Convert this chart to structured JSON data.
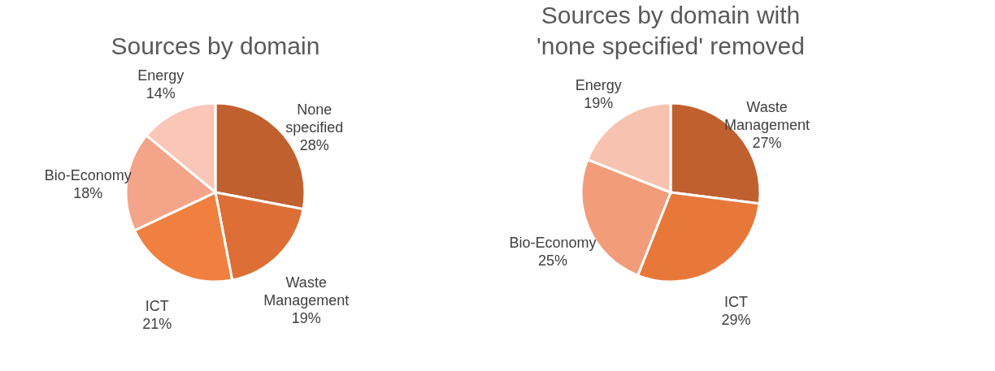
{
  "chart_data": [
    {
      "type": "pie",
      "title": "Sources by domain",
      "categories": [
        "None specified",
        "Waste Management",
        "ICT",
        "Bio-Economy",
        "Energy"
      ],
      "values": [
        28,
        19,
        21,
        18,
        14
      ],
      "colors": [
        "#c0602e",
        "#dd6f36",
        "#f08040",
        "#f4a488",
        "#f9c6b8"
      ],
      "value_labels": [
        "28%",
        "19%",
        "21%",
        "18%",
        "14%"
      ],
      "legend": false
    },
    {
      "type": "pie",
      "title": "Sources by domain with 'none specified' removed",
      "categories": [
        "Waste Management",
        "ICT",
        "Bio-Economy",
        "Energy"
      ],
      "values": [
        27,
        29,
        25,
        19
      ],
      "colors": [
        "#c0602e",
        "#e8773a",
        "#f29c7a",
        "#f8c2b0"
      ],
      "value_labels": [
        "27%",
        "29%",
        "25%",
        "19%"
      ],
      "legend": false
    }
  ]
}
